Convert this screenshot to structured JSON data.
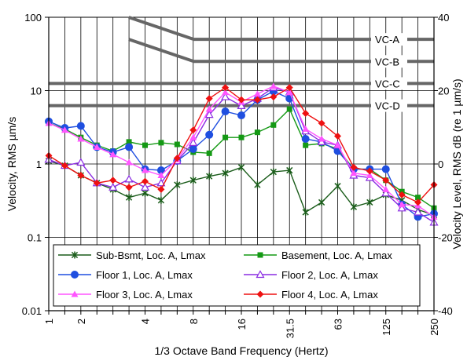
{
  "chart_data": {
    "type": "line",
    "xlabel": "1/3 Octave Band Frequency (Hertz)",
    "ylabel": "Velocity, RMS µm/s",
    "y2label": "Velocity Level, RMS dB (re 1 µm/s)",
    "y_scale": "log",
    "ylim": [
      0.01,
      100
    ],
    "y2lim": [
      -40,
      40
    ],
    "grid": true,
    "legend_position": "bottom",
    "categories": [
      "1",
      "1.25",
      "1.6",
      "2",
      "2.5",
      "3.15",
      "4",
      "5",
      "6.3",
      "8",
      "10",
      "12.5",
      "16",
      "20",
      "25",
      "31.5",
      "40",
      "50",
      "63",
      "80",
      "100",
      "125",
      "160",
      "200",
      "250"
    ],
    "x_tick_labels": [
      "1",
      "",
      "2",
      "",
      "",
      "",
      "4",
      "",
      "",
      "8",
      "",
      "",
      "16",
      "",
      "",
      "31.5",
      "",
      "",
      "63",
      "",
      "",
      "125",
      "",
      "",
      "250"
    ],
    "y_ticks": [
      {
        "value": 100,
        "label": "100"
      },
      {
        "value": 10,
        "label": "10"
      },
      {
        "value": 1,
        "label": "1"
      },
      {
        "value": 0.1,
        "label": "0.1"
      },
      {
        "value": 0.01,
        "label": "0.01"
      }
    ],
    "y2_ticks": [
      {
        "value": 40,
        "label": "40"
      },
      {
        "value": 20,
        "label": "20"
      },
      {
        "value": 0,
        "label": "0"
      },
      {
        "value": -20,
        "label": "-20"
      },
      {
        "value": -40,
        "label": "-40"
      }
    ],
    "criteria": [
      {
        "name": "VC-A",
        "color": "#666666",
        "points": [
          [
            3.15,
            100
          ],
          [
            8,
            50
          ],
          [
            250,
            50
          ]
        ]
      },
      {
        "name": "VC-B",
        "color": "#666666",
        "points": [
          [
            3.15,
            50
          ],
          [
            8,
            25
          ],
          [
            250,
            25
          ]
        ]
      },
      {
        "name": "VC-C",
        "color": "#666666",
        "points": [
          [
            1,
            12.5
          ],
          [
            250,
            12.5
          ]
        ]
      },
      {
        "name": "VC-D",
        "color": "#666666",
        "points": [
          [
            1,
            6.25
          ],
          [
            250,
            6.25
          ]
        ]
      }
    ],
    "series": [
      {
        "name": "Sub-Bsmt, Loc. A, Lmax",
        "color": "#1a5c1a",
        "marker": "star",
        "values": [
          1.1,
          0.95,
          0.7,
          0.55,
          0.45,
          0.35,
          0.4,
          0.32,
          0.52,
          0.6,
          0.68,
          0.75,
          0.9,
          0.52,
          0.78,
          0.82,
          0.22,
          0.3,
          0.5,
          0.26,
          0.3,
          0.38,
          0.32,
          0.24,
          0.2
        ]
      },
      {
        "name": "Basement, Loc. A, Lmax",
        "color": "#149914",
        "marker": "square",
        "values": [
          3.6,
          3.0,
          2.3,
          1.8,
          1.5,
          2.0,
          1.8,
          1.95,
          1.85,
          1.45,
          1.4,
          2.3,
          2.3,
          2.7,
          3.4,
          5.6,
          1.8,
          1.9,
          1.6,
          0.85,
          0.85,
          0.6,
          0.42,
          0.35,
          0.25
        ]
      },
      {
        "name": "Floor 1, Loc. A, Lmax",
        "color": "#1f4fe0",
        "marker": "circle",
        "values": [
          3.8,
          3.1,
          3.3,
          1.7,
          1.45,
          1.7,
          0.85,
          0.82,
          1.1,
          1.6,
          2.5,
          5.2,
          4.6,
          7.5,
          9.8,
          7.8,
          2.2,
          2.0,
          1.5,
          0.85,
          0.85,
          0.85,
          0.28,
          0.19,
          0.21
        ]
      },
      {
        "name": "Floor 2, Loc. A, Lmax",
        "color": "#8a2be2",
        "marker": "triangle-open",
        "values": [
          1.15,
          0.95,
          1.05,
          0.55,
          0.48,
          0.62,
          0.48,
          0.55,
          1.1,
          1.95,
          4.7,
          8.2,
          6.2,
          7.8,
          11.0,
          9.5,
          2.8,
          2.0,
          1.8,
          0.7,
          0.65,
          0.4,
          0.25,
          0.22,
          0.16
        ]
      },
      {
        "name": "Floor 3, Loc. A, Lmax",
        "color": "#ff55ff",
        "marker": "triangle",
        "values": [
          3.6,
          2.9,
          2.2,
          1.7,
          1.35,
          1.05,
          0.82,
          0.7,
          1.15,
          2.3,
          5.6,
          9.5,
          7.0,
          9.0,
          11.5,
          9.5,
          3.0,
          2.2,
          1.8,
          0.75,
          0.7,
          0.45,
          0.28,
          0.27,
          0.19
        ]
      },
      {
        "name": "Floor 4, Loc. A, Lmax",
        "color": "#ee1111",
        "marker": "diamond",
        "values": [
          1.3,
          0.95,
          0.7,
          0.55,
          0.6,
          0.48,
          0.58,
          0.45,
          1.2,
          2.9,
          7.8,
          11.0,
          7.5,
          7.5,
          8.2,
          11.0,
          4.9,
          3.6,
          2.4,
          0.9,
          0.8,
          0.6,
          0.38,
          0.3,
          0.52
        ]
      }
    ]
  }
}
